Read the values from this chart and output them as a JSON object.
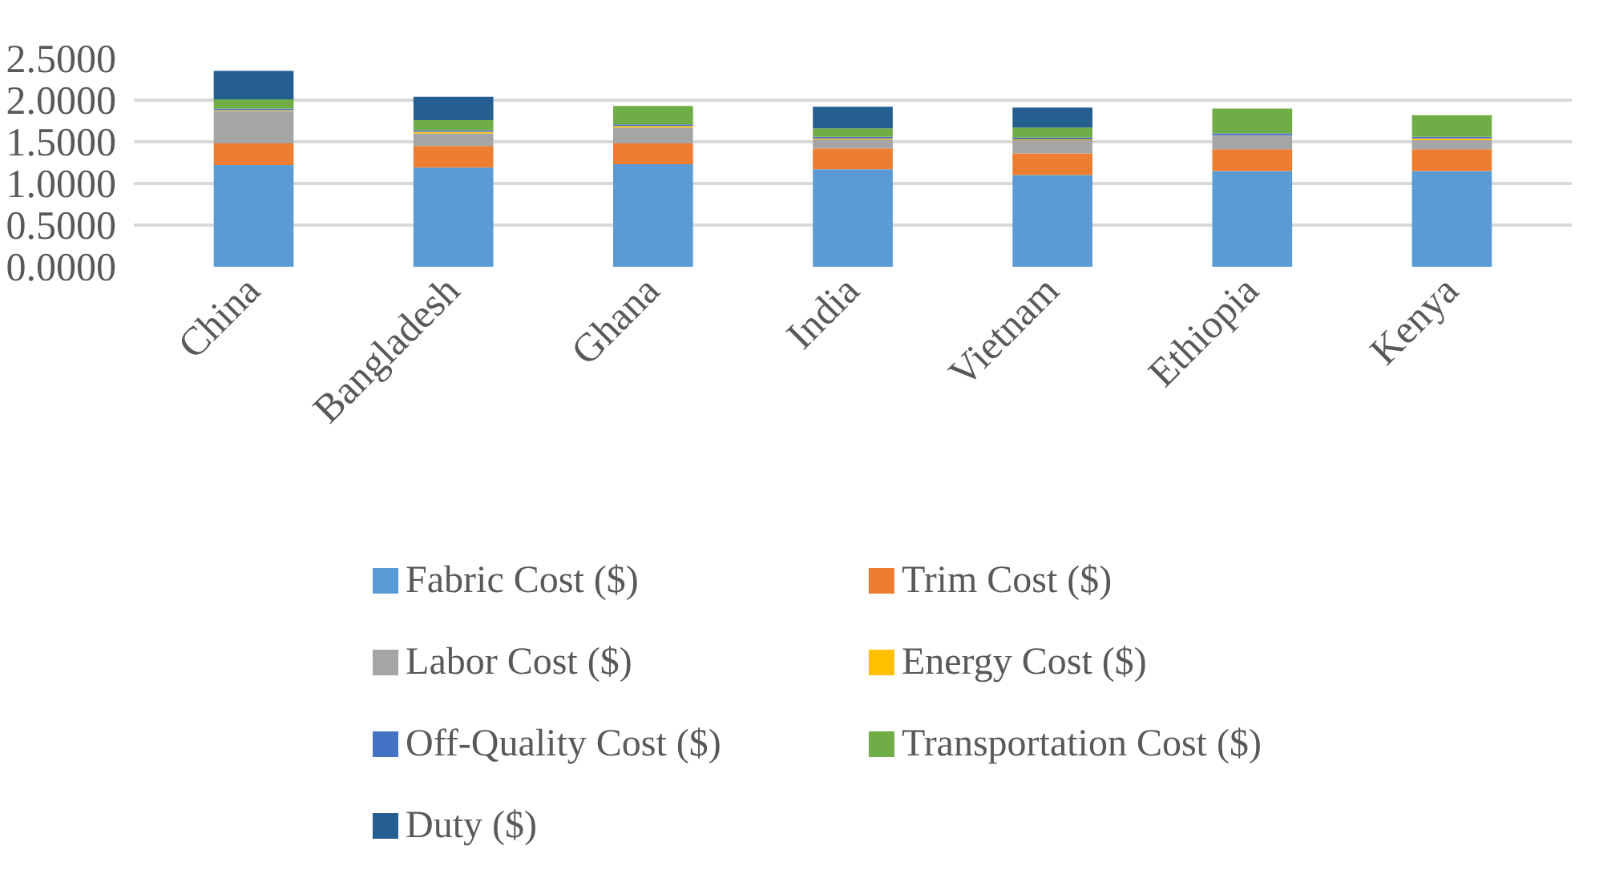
{
  "chart_data": {
    "type": "bar",
    "stacked": true,
    "categories": [
      "China",
      "Bangladesh",
      "Ghana",
      "India",
      "Vietnam",
      "Ethiopia",
      "Kenya"
    ],
    "series": [
      {
        "name": "Fabric Cost ($)",
        "color": "#5b9bd5",
        "values": [
          1.22,
          1.19,
          1.23,
          1.17,
          1.1,
          1.15,
          1.15
        ]
      },
      {
        "name": "Trim Cost ($)",
        "color": "#ed7d31",
        "values": [
          0.26,
          0.26,
          0.25,
          0.25,
          0.26,
          0.26,
          0.26
        ]
      },
      {
        "name": "Labor Cost ($)",
        "color": "#a5a5a5",
        "values": [
          0.39,
          0.15,
          0.19,
          0.11,
          0.16,
          0.17,
          0.11
        ]
      },
      {
        "name": "Energy Cost ($)",
        "color": "#ffc000",
        "values": [
          0.01,
          0.02,
          0.02,
          0.01,
          0.01,
          0.0,
          0.02
        ]
      },
      {
        "name": "Off-Quality Cost ($)",
        "color": "#4472c4",
        "values": [
          0.02,
          0.02,
          0.02,
          0.02,
          0.02,
          0.02,
          0.02
        ]
      },
      {
        "name": "Transportation Cost ($)",
        "color": "#70ad47",
        "values": [
          0.11,
          0.12,
          0.22,
          0.1,
          0.12,
          0.3,
          0.26
        ]
      },
      {
        "name": "Duty ($)",
        "color": "#255e91",
        "values": [
          0.34,
          0.28,
          0.0,
          0.26,
          0.24,
          0.0,
          0.0
        ]
      }
    ],
    "ylim": [
      0,
      2.5
    ],
    "yticks": [
      {
        "value": 0,
        "label": "0.0000"
      },
      {
        "value": 0.5,
        "label": "0.5000"
      },
      {
        "value": 1,
        "label": "1.0000"
      },
      {
        "value": 1.5,
        "label": "1.5000"
      },
      {
        "value": 2,
        "label": "2.0000"
      },
      {
        "value": 2.5,
        "label": "2.5000"
      }
    ],
    "grid": "y",
    "legend": "bottom"
  }
}
